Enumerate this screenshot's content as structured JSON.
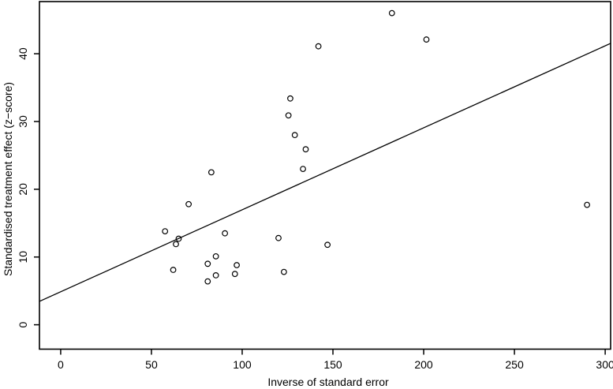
{
  "chart_data": {
    "type": "scatter",
    "title": "",
    "xlabel": "Inverse of standard error",
    "ylabel": "Standardised treatment effect (z−score)",
    "x_ticks": [
      0,
      50,
      100,
      150,
      200,
      250,
      300
    ],
    "y_ticks": [
      0,
      10,
      20,
      30,
      40
    ],
    "xlim": [
      -11.7,
      303
    ],
    "ylim": [
      -3.6,
      47.7
    ],
    "grid": false,
    "legend": "none",
    "marker": "open-circle",
    "points": [
      [
        57.5,
        13.8
      ],
      [
        62,
        8.1
      ],
      [
        63.5,
        11.9
      ],
      [
        65,
        12.7
      ],
      [
        70.5,
        17.8
      ],
      [
        81,
        6.4
      ],
      [
        81,
        9.0
      ],
      [
        83,
        22.5
      ],
      [
        85.5,
        7.3
      ],
      [
        85.5,
        10.1
      ],
      [
        90.5,
        13.5
      ],
      [
        96,
        7.5
      ],
      [
        97,
        8.8
      ],
      [
        120,
        12.8
      ],
      [
        123,
        7.8
      ],
      [
        125.5,
        30.9
      ],
      [
        126.5,
        33.4
      ],
      [
        129,
        28.0
      ],
      [
        133.5,
        23.0
      ],
      [
        135,
        25.9
      ],
      [
        142,
        41.1
      ],
      [
        147,
        11.8
      ],
      [
        182.5,
        46.0
      ],
      [
        201.5,
        42.1
      ],
      [
        290,
        17.7
      ]
    ],
    "regression_line": {
      "slope": 0.121,
      "intercept": 4.87,
      "x_start": -11.7,
      "x_end": 303
    }
  },
  "colors": {
    "foreground": "#000000",
    "background": "#ffffff"
  }
}
